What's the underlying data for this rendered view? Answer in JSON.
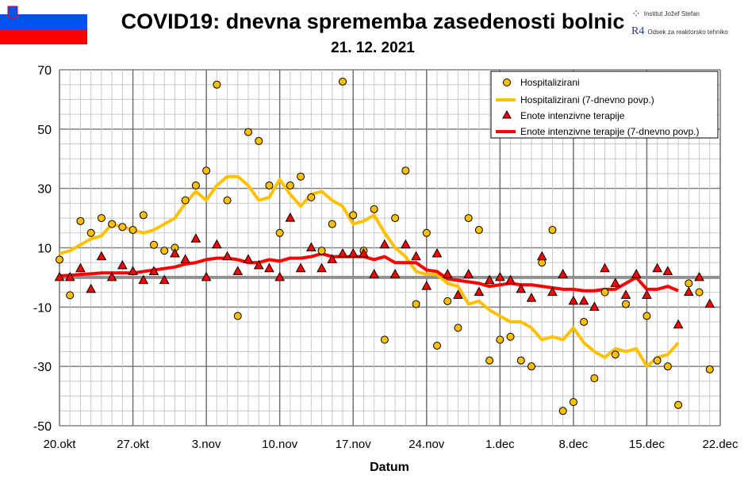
{
  "header": {
    "title": "COVID19: dnevna sprememba zasedenosti bolnic",
    "date": "21. 12. 2021",
    "logo_ijs": "Institut Jožef Stefan",
    "logo_r4": "Odsek za reaktorsko tehniko",
    "logo_r4_mark": "R4"
  },
  "colors": {
    "hosp": "#FFC000",
    "icu": "#FF0000",
    "grid": "#C0C0C0",
    "major": "#808080"
  },
  "chart_data": {
    "type": "line",
    "title": "COVID19: dnevna sprememba zasedenosti bolnic",
    "xlabel": "Datum",
    "ylabel": "",
    "ylim": [
      -50,
      70
    ],
    "yticks": [
      -50,
      -30,
      -10,
      10,
      30,
      50,
      70
    ],
    "xticklabels": [
      "20.okt",
      "27.okt",
      "3.nov",
      "10.nov",
      "17.nov",
      "24.nov",
      "1.dec",
      "8.dec",
      "15.dec",
      "22.dec"
    ],
    "x_days_range": [
      0,
      63
    ],
    "legend_position": "top-right",
    "grid": true,
    "series": [
      {
        "name": "Hospitalizirani",
        "kind": "markers-circle",
        "values": [
          6,
          -6,
          19,
          15,
          20,
          18,
          17,
          16,
          21,
          11,
          9,
          10,
          26,
          31,
          36,
          65,
          26,
          -13,
          49,
          46,
          31,
          15,
          31,
          34,
          27,
          9,
          18,
          66,
          21,
          9,
          23,
          -21,
          20,
          36,
          -9,
          15,
          -23,
          -8,
          -17,
          20,
          16,
          -28,
          -21,
          -20,
          -28,
          -30,
          5,
          16,
          -45,
          -42,
          -15,
          -34,
          -5,
          -26,
          -9,
          null,
          -13,
          -28,
          -30,
          -43,
          -2,
          -5,
          -31
        ]
      },
      {
        "name": "Hospitalizirani (7-dnevno povp.)",
        "kind": "line",
        "values": [
          8,
          9,
          11,
          13,
          14,
          18,
          17,
          16,
          15,
          16,
          18,
          20,
          25,
          29,
          26,
          31,
          34,
          34,
          31,
          26,
          27,
          33,
          28,
          24,
          28,
          29,
          26,
          24,
          18,
          19,
          21,
          15,
          10,
          7,
          2,
          1,
          1,
          -2,
          -3,
          -9,
          -8,
          -11,
          -13,
          -15,
          -15,
          -17,
          -21,
          -20,
          -21,
          -17,
          -22,
          -25,
          -27,
          -24,
          -25,
          -24,
          -30,
          -27,
          -26,
          -22
        ]
      },
      {
        "name": "Enote intenzivne terapije",
        "kind": "markers-triangle",
        "values": [
          0,
          0,
          3,
          -4,
          7,
          0,
          4,
          2,
          -1,
          2,
          -1,
          8,
          6,
          13,
          0,
          11,
          7,
          2,
          6,
          4,
          3,
          0,
          20,
          3,
          10,
          3,
          6,
          8,
          8,
          8,
          1,
          11,
          1,
          11,
          7,
          -3,
          8,
          1,
          -6,
          1,
          -5,
          -1,
          0,
          -1,
          -4,
          -7,
          7,
          -5,
          1,
          -8,
          -8,
          -10,
          3,
          -2,
          -6,
          1,
          -6,
          3,
          2,
          -16,
          -5,
          0,
          -9
        ]
      },
      {
        "name": "Enote intenzivne terapije (7-dnevno povp.)",
        "kind": "line",
        "values": [
          0.5,
          0.7,
          1,
          1.2,
          1.5,
          1.5,
          1.5,
          1.5,
          2,
          2.5,
          3,
          3.5,
          4.5,
          5,
          6,
          6.5,
          6.5,
          6,
          5,
          5,
          6,
          5.5,
          6.5,
          6.5,
          7,
          8,
          7,
          7,
          7,
          7,
          6,
          7,
          5,
          5,
          5,
          2.5,
          2,
          -0.5,
          -1,
          -1.5,
          -2,
          -3,
          -2.5,
          -2,
          -2.5,
          -2.5,
          -3,
          -3.5,
          -4,
          -4,
          -4.5,
          -4.5,
          -4,
          -4,
          -2,
          0,
          -4,
          -4,
          -3,
          -4.5
        ]
      }
    ]
  }
}
